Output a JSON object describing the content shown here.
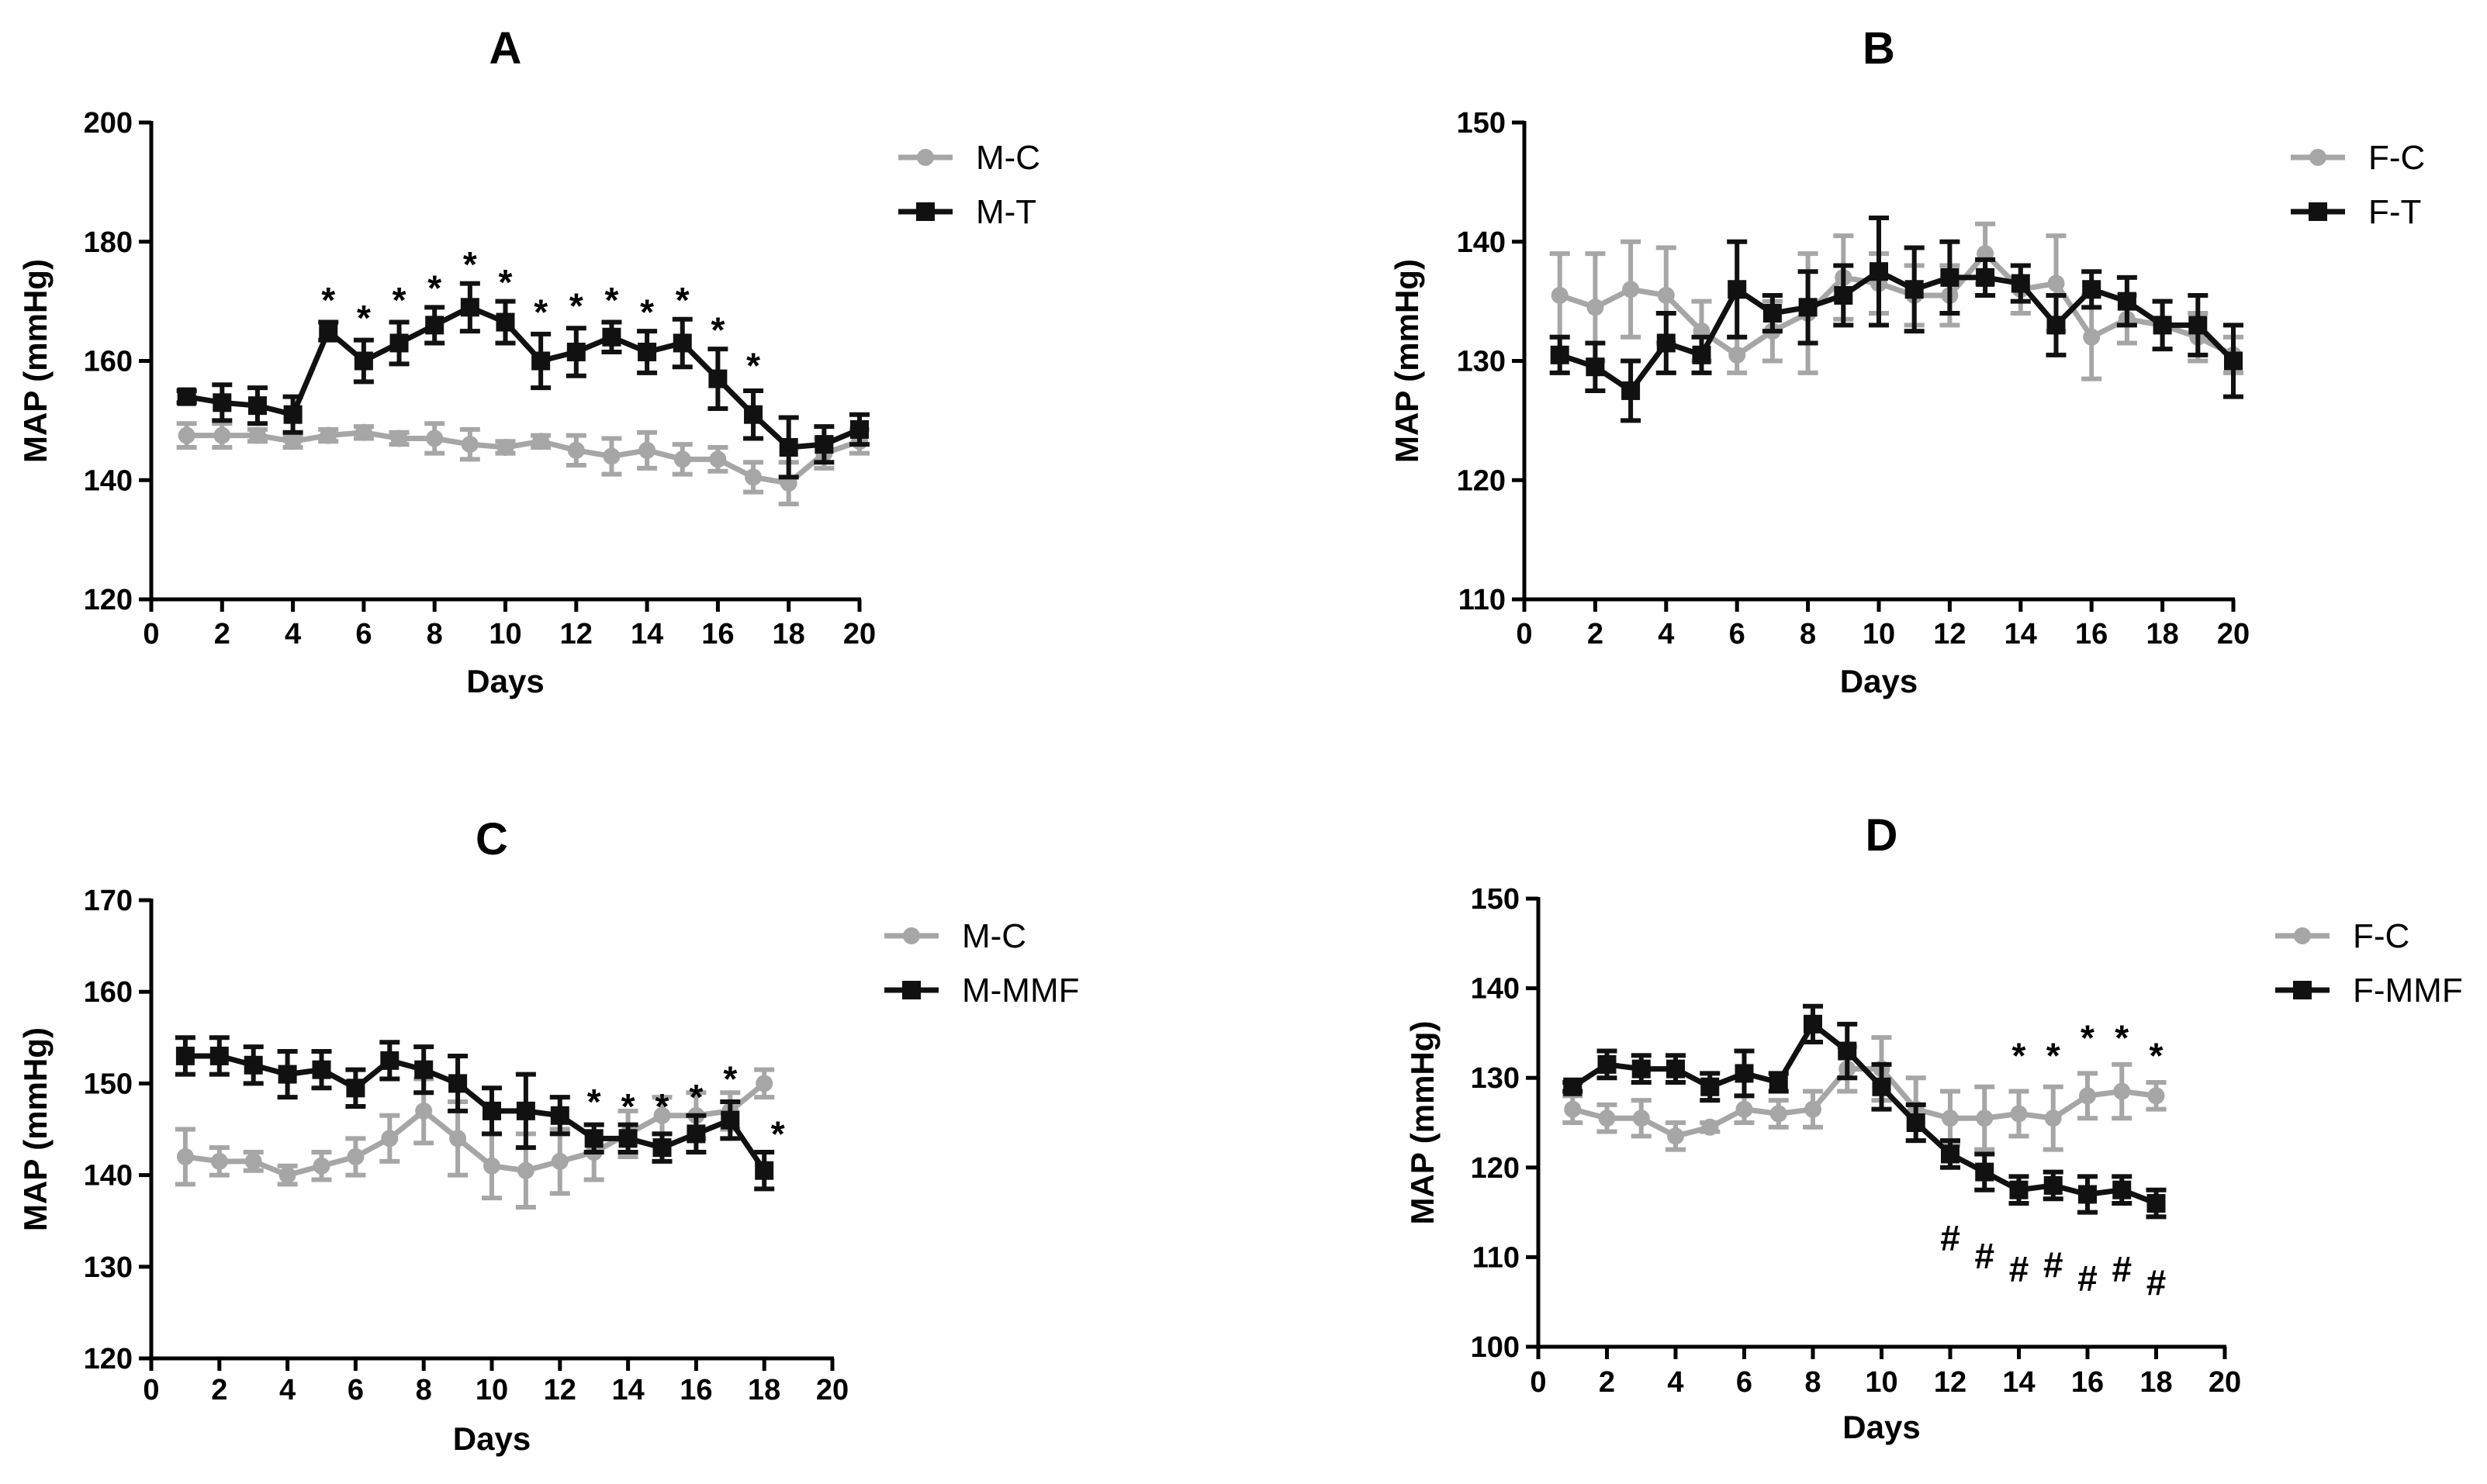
{
  "figure": {
    "description_colors": {
      "control": "#a6a6a6",
      "treated": "#111111"
    }
  },
  "chart_data": [
    {
      "id": "A",
      "type": "line",
      "title": "A",
      "xlabel": "Days",
      "ylabel": "MAP (mmHg)",
      "xlim": [
        0,
        20
      ],
      "ylim": [
        120,
        200
      ],
      "xticks": [
        0,
        2,
        4,
        6,
        8,
        10,
        12,
        14,
        16,
        18,
        20
      ],
      "yticks": [
        120,
        140,
        160,
        180,
        200
      ],
      "legend_position": "top-right",
      "series": [
        {
          "name": "M-C",
          "marker": "circle",
          "color": "#a6a6a6",
          "x": [
            1,
            2,
            3,
            4,
            5,
            6,
            7,
            8,
            9,
            10,
            11,
            12,
            13,
            14,
            15,
            16,
            17,
            18,
            19,
            20
          ],
          "y": [
            147.5,
            147.5,
            147.5,
            146.5,
            147.5,
            148.0,
            147.0,
            147.0,
            146.0,
            145.5,
            146.5,
            145.0,
            144.0,
            145.0,
            143.5,
            143.5,
            140.5,
            139.5,
            144.5,
            146.5
          ],
          "err": [
            2.0,
            2.0,
            1.0,
            1.0,
            1.0,
            1.0,
            1.0,
            2.5,
            2.5,
            1.0,
            1.0,
            2.5,
            3.0,
            3.0,
            2.5,
            2.0,
            2.5,
            3.5,
            2.5,
            2.0
          ]
        },
        {
          "name": "M-T",
          "marker": "square",
          "color": "#111111",
          "x": [
            1,
            2,
            3,
            4,
            5,
            6,
            7,
            8,
            9,
            10,
            11,
            12,
            13,
            14,
            15,
            16,
            17,
            18,
            19,
            20
          ],
          "y": [
            154.0,
            153.0,
            152.5,
            151.0,
            165.0,
            160.0,
            163.0,
            166.0,
            169.0,
            166.5,
            160.0,
            161.5,
            164.0,
            161.5,
            163.0,
            157.0,
            151.0,
            145.5,
            146.0,
            148.5
          ],
          "err": [
            1.0,
            3.0,
            3.0,
            3.0,
            1.5,
            3.5,
            3.5,
            3.0,
            4.0,
            3.5,
            4.5,
            4.0,
            2.5,
            3.5,
            4.0,
            5.0,
            4.0,
            5.0,
            3.0,
            2.5
          ]
        }
      ],
      "annotations": [
        {
          "x": 5,
          "y": 171,
          "text": "*"
        },
        {
          "x": 6,
          "y": 168,
          "text": "*"
        },
        {
          "x": 7,
          "y": 171,
          "text": "*"
        },
        {
          "x": 8,
          "y": 173,
          "text": "*"
        },
        {
          "x": 9,
          "y": 177,
          "text": "*"
        },
        {
          "x": 10,
          "y": 174,
          "text": "*"
        },
        {
          "x": 11,
          "y": 169,
          "text": "*"
        },
        {
          "x": 12,
          "y": 170,
          "text": "*"
        },
        {
          "x": 13,
          "y": 171,
          "text": "*"
        },
        {
          "x": 14,
          "y": 169,
          "text": "*"
        },
        {
          "x": 15,
          "y": 171,
          "text": "*"
        },
        {
          "x": 16,
          "y": 166,
          "text": "*"
        },
        {
          "x": 17,
          "y": 160,
          "text": "*"
        }
      ]
    },
    {
      "id": "B",
      "type": "line",
      "title": "B",
      "xlabel": "Days",
      "ylabel": "MAP (mmHg)",
      "xlim": [
        0,
        20
      ],
      "ylim": [
        110,
        150
      ],
      "xticks": [
        0,
        2,
        4,
        6,
        8,
        10,
        12,
        14,
        16,
        18,
        20
      ],
      "yticks": [
        110,
        120,
        130,
        140,
        150
      ],
      "legend_position": "top-right",
      "series": [
        {
          "name": "F-C",
          "marker": "circle",
          "color": "#a6a6a6",
          "x": [
            1,
            2,
            3,
            4,
            5,
            6,
            7,
            8,
            9,
            10,
            11,
            12,
            13,
            14,
            15,
            16,
            17,
            18,
            19,
            20
          ],
          "y": [
            135.5,
            134.5,
            136.0,
            135.5,
            132.5,
            130.5,
            132.5,
            134.0,
            137.0,
            136.5,
            135.5,
            135.5,
            139.0,
            136.0,
            136.5,
            132.0,
            133.5,
            133.0,
            132.0,
            130.5
          ],
          "err": [
            3.5,
            4.5,
            4.0,
            4.0,
            2.5,
            1.5,
            2.5,
            5.0,
            3.5,
            2.5,
            2.5,
            2.5,
            2.5,
            2.0,
            4.0,
            3.5,
            2.0,
            2.0,
            2.0,
            1.5
          ]
        },
        {
          "name": "F-T",
          "marker": "square",
          "color": "#111111",
          "x": [
            1,
            2,
            3,
            4,
            5,
            6,
            7,
            8,
            9,
            10,
            11,
            12,
            13,
            14,
            15,
            16,
            17,
            18,
            19,
            20
          ],
          "y": [
            130.5,
            129.5,
            127.5,
            131.5,
            130.5,
            136.0,
            134.0,
            134.5,
            135.5,
            137.5,
            136.0,
            137.0,
            137.0,
            136.5,
            133.0,
            136.0,
            135.0,
            133.0,
            133.0,
            130.0
          ],
          "err": [
            1.5,
            2.0,
            2.5,
            2.5,
            1.5,
            4.0,
            1.5,
            3.0,
            2.5,
            4.5,
            3.5,
            3.0,
            1.5,
            1.5,
            2.5,
            1.5,
            2.0,
            2.0,
            2.5,
            3.0
          ]
        }
      ],
      "annotations": []
    },
    {
      "id": "C",
      "type": "line",
      "title": "C",
      "xlabel": "Days",
      "ylabel": "MAP (mmHg)",
      "xlim": [
        0,
        20
      ],
      "ylim": [
        120,
        170
      ],
      "xticks": [
        0,
        2,
        4,
        6,
        8,
        10,
        12,
        14,
        16,
        18,
        20
      ],
      "yticks": [
        120,
        130,
        140,
        150,
        160,
        170
      ],
      "legend_position": "top-right",
      "series": [
        {
          "name": "M-C",
          "marker": "circle",
          "color": "#a6a6a6",
          "x": [
            1,
            2,
            3,
            4,
            5,
            6,
            7,
            8,
            9,
            10,
            11,
            12,
            13,
            14,
            15,
            16,
            17,
            18
          ],
          "y": [
            142.0,
            141.5,
            141.5,
            140.0,
            141.0,
            142.0,
            144.0,
            147.0,
            144.0,
            141.0,
            140.5,
            141.5,
            142.5,
            144.5,
            146.5,
            146.5,
            147.0,
            150.0
          ],
          "err": [
            3.0,
            1.5,
            1.0,
            1.0,
            1.5,
            2.0,
            2.5,
            3.5,
            4.0,
            3.5,
            4.0,
            3.5,
            3.0,
            2.5,
            2.0,
            2.5,
            2.0,
            1.5
          ]
        },
        {
          "name": "M-MMF",
          "marker": "square",
          "color": "#111111",
          "x": [
            1,
            2,
            3,
            4,
            5,
            6,
            7,
            8,
            9,
            10,
            11,
            12,
            13,
            14,
            15,
            16,
            17,
            18
          ],
          "y": [
            153.0,
            153.0,
            152.0,
            151.0,
            151.5,
            149.5,
            152.5,
            151.5,
            150.0,
            147.0,
            147.0,
            146.5,
            144.0,
            144.0,
            143.0,
            144.5,
            146.0,
            140.5
          ],
          "err": [
            2.0,
            2.0,
            2.0,
            2.5,
            2.0,
            2.0,
            2.0,
            2.5,
            3.0,
            2.5,
            4.0,
            2.0,
            1.5,
            1.5,
            1.5,
            2.0,
            2.0,
            2.0
          ]
        }
      ],
      "annotations": [
        {
          "x": 13,
          "y": 148.5,
          "text": "*"
        },
        {
          "x": 14,
          "y": 148,
          "text": "*"
        },
        {
          "x": 15,
          "y": 148,
          "text": "*"
        },
        {
          "x": 16,
          "y": 149,
          "text": "*"
        },
        {
          "x": 17,
          "y": 151,
          "text": "*"
        },
        {
          "x": 18.4,
          "y": 145,
          "text": "*"
        }
      ]
    },
    {
      "id": "D",
      "type": "line",
      "title": "D",
      "xlabel": "Days",
      "ylabel": "MAP (mmHg)",
      "xlim": [
        0,
        20
      ],
      "ylim": [
        100,
        150
      ],
      "xticks": [
        0,
        2,
        4,
        6,
        8,
        10,
        12,
        14,
        16,
        18,
        20
      ],
      "yticks": [
        100,
        110,
        120,
        130,
        140,
        150
      ],
      "legend_position": "top-right",
      "series": [
        {
          "name": "F-C",
          "marker": "circle",
          "color": "#a6a6a6",
          "x": [
            1,
            2,
            3,
            4,
            5,
            6,
            7,
            8,
            9,
            10,
            11,
            12,
            13,
            14,
            15,
            16,
            17,
            18
          ],
          "y": [
            126.5,
            125.5,
            125.5,
            123.5,
            124.5,
            126.5,
            126.0,
            126.5,
            131.0,
            131.0,
            126.5,
            125.5,
            125.5,
            126.0,
            125.5,
            128.0,
            128.5,
            128.0
          ],
          "err": [
            1.5,
            1.5,
            2.0,
            1.5,
            0.5,
            1.5,
            1.5,
            2.0,
            2.5,
            3.5,
            3.5,
            3.0,
            3.5,
            2.5,
            3.5,
            2.5,
            3.0,
            1.5
          ]
        },
        {
          "name": "F-MMF",
          "marker": "square",
          "color": "#111111",
          "x": [
            1,
            2,
            3,
            4,
            5,
            6,
            7,
            8,
            9,
            10,
            11,
            12,
            13,
            14,
            15,
            16,
            17,
            18
          ],
          "y": [
            129.0,
            131.5,
            131.0,
            131.0,
            129.0,
            130.5,
            129.5,
            136.0,
            133.0,
            129.0,
            125.0,
            121.5,
            119.5,
            117.5,
            118.0,
            117.0,
            117.5,
            116.0
          ],
          "err": [
            0.5,
            1.5,
            1.5,
            1.5,
            1.5,
            2.5,
            1.0,
            2.0,
            3.0,
            2.5,
            2.0,
            1.5,
            2.0,
            1.5,
            1.5,
            2.0,
            1.5,
            1.5
          ]
        }
      ],
      "annotations": [
        {
          "x": 14,
          "y": 133,
          "text": "*"
        },
        {
          "x": 15,
          "y": 133,
          "text": "*"
        },
        {
          "x": 16,
          "y": 135,
          "text": "*"
        },
        {
          "x": 17,
          "y": 135,
          "text": "*"
        },
        {
          "x": 18,
          "y": 133,
          "text": "*"
        },
        {
          "x": 12,
          "y": 112,
          "text": "#"
        },
        {
          "x": 13,
          "y": 110,
          "text": "#"
        },
        {
          "x": 14,
          "y": 108.5,
          "text": "#"
        },
        {
          "x": 15,
          "y": 109,
          "text": "#"
        },
        {
          "x": 16,
          "y": 107.5,
          "text": "#"
        },
        {
          "x": 17,
          "y": 108.5,
          "text": "#"
        },
        {
          "x": 18,
          "y": 107,
          "text": "#"
        }
      ]
    }
  ]
}
